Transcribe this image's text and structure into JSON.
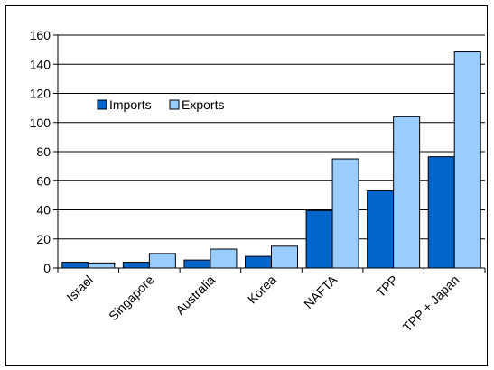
{
  "chart_data": {
    "type": "bar",
    "title": "",
    "xlabel": "",
    "ylabel": "",
    "categories": [
      "Israel",
      "Singapore",
      "Australia",
      "Korea",
      "NAFTA",
      "TPP",
      "TPP + Japan"
    ],
    "series": [
      {
        "name": "Imports",
        "values": [
          4,
          4,
          5.5,
          8,
          39.5,
          53,
          76.5
        ]
      },
      {
        "name": "Exports",
        "values": [
          3.5,
          10,
          13,
          15,
          75,
          104,
          148.5
        ]
      }
    ],
    "ylim": [
      0,
      160
    ],
    "yticks": [
      0,
      20,
      40,
      60,
      80,
      100,
      120,
      140,
      160
    ],
    "yticks_labels": [
      "0",
      "20",
      "40",
      "60",
      "80",
      "100",
      "120",
      "140",
      "160"
    ],
    "grid": true,
    "legend_position": "upper-left",
    "colors": {
      "Imports": "#0066cc",
      "Exports": "#99ccff",
      "gridline": "#000000",
      "bar_outline": "#000000"
    }
  }
}
